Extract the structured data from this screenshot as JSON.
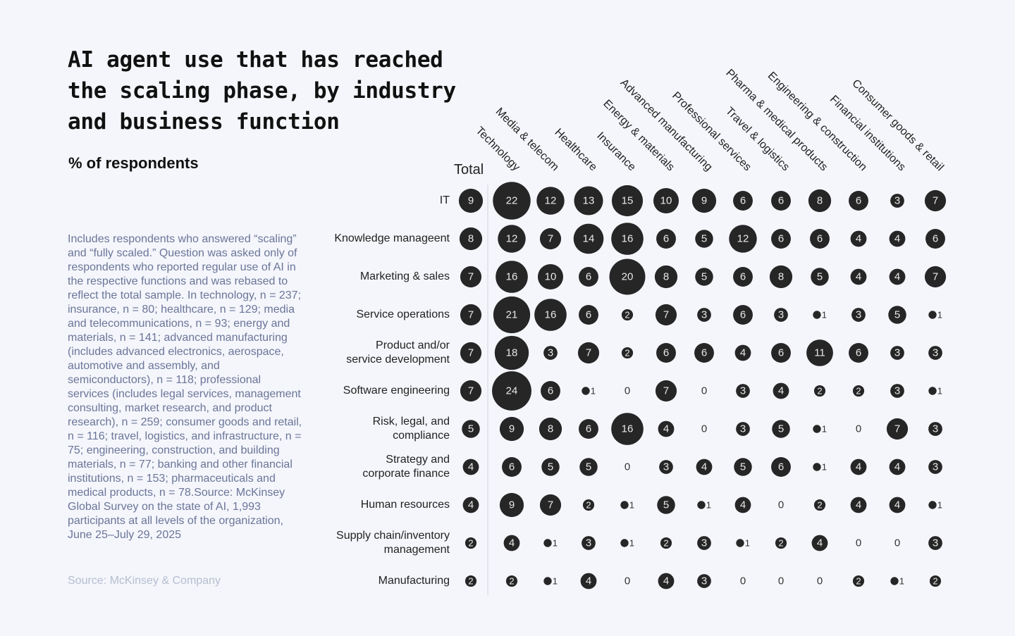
{
  "title": "AI agent use that has reached the scaling phase, by industry and business function",
  "subtitle": "% of respondents",
  "note": "Includes respondents who answered “scaling” and “fully scaled.” Question was asked only of respondents who reported regular use of AI in the respective functions and was rebased to reflect the total sample. In technology, n = 237; insurance, n = 80; healthcare, n = 129; media and telecommunications, n = 93; energy and materials, n = 141; advanced manufacturing (includes advanced electronics, aerospace, automotive and assembly, and semiconductors), n = 118; professional services (includes legal services, management consulting, market research, and product research), n = 259; consumer goods and retail, n = 116; travel, logistics, and infrastructure, n = 75; engineering, construction, and building materials, n = 77; banking and other financial institutions, n = 153; pharmaceuticals and medical products, n = 78.Source: McKinsey Global Survey on the state of AI, 1,993 participants at all levels of the organization, June 25–July 29, 2025",
  "source": "Source: McKinsey & Company",
  "colors": {
    "background": "#f4f6fb",
    "bubble": "#262626",
    "bubble_text": "#e8e8e8",
    "note_text": "#6b7599",
    "source_text": "#b6bdd0"
  },
  "chart_data": {
    "type": "bubble-matrix",
    "title": "AI agent use that has reached the scaling phase, by industry and business function",
    "unit": "% of respondents",
    "columns": [
      "Total",
      "Technology",
      "Media & telecom",
      "Healthcare",
      "Insurance",
      "Energy & materials",
      "Advanced manufacturing",
      "Professional services",
      "Travel & logistics",
      "Pharma & medical products",
      "Engineering & construction",
      "Financial institutions",
      "Consumer goods & retail"
    ],
    "rows": [
      {
        "label": "IT",
        "values": [
          9,
          22,
          12,
          13,
          15,
          10,
          9,
          6,
          6,
          8,
          6,
          3,
          7
        ]
      },
      {
        "label": "Knowledge manageent",
        "values": [
          8,
          12,
          7,
          14,
          16,
          6,
          5,
          12,
          6,
          6,
          4,
          4,
          6
        ]
      },
      {
        "label": "Marketing & sales",
        "values": [
          7,
          16,
          10,
          6,
          20,
          8,
          5,
          6,
          8,
          5,
          4,
          4,
          7
        ]
      },
      {
        "label": "Service operations",
        "values": [
          7,
          21,
          16,
          6,
          2,
          7,
          3,
          6,
          3,
          1,
          3,
          5,
          1
        ]
      },
      {
        "label": "Product and/or\nservice development",
        "values": [
          7,
          18,
          3,
          7,
          2,
          6,
          6,
          4,
          6,
          11,
          6,
          3,
          3
        ]
      },
      {
        "label": "Software engineering",
        "values": [
          7,
          24,
          6,
          1,
          0,
          7,
          0,
          3,
          4,
          2,
          2,
          3,
          1
        ]
      },
      {
        "label": "Risk, legal, and\ncompliance",
        "values": [
          5,
          9,
          8,
          6,
          16,
          4,
          0,
          3,
          5,
          1,
          0,
          7,
          3
        ]
      },
      {
        "label": "Strategy and\ncorporate finance",
        "values": [
          4,
          6,
          5,
          5,
          0,
          3,
          4,
          5,
          6,
          1,
          4,
          4,
          3
        ]
      },
      {
        "label": "Human resources",
        "values": [
          4,
          9,
          7,
          2,
          1,
          5,
          1,
          4,
          0,
          2,
          4,
          4,
          1
        ]
      },
      {
        "label": "Supply chain/inventory\nmanagement",
        "values": [
          2,
          4,
          1,
          3,
          1,
          2,
          3,
          1,
          2,
          4,
          0,
          0,
          3
        ]
      },
      {
        "label": "Manufacturing",
        "values": [
          2,
          2,
          1,
          4,
          0,
          4,
          3,
          0,
          0,
          0,
          2,
          1,
          2
        ]
      }
    ]
  }
}
